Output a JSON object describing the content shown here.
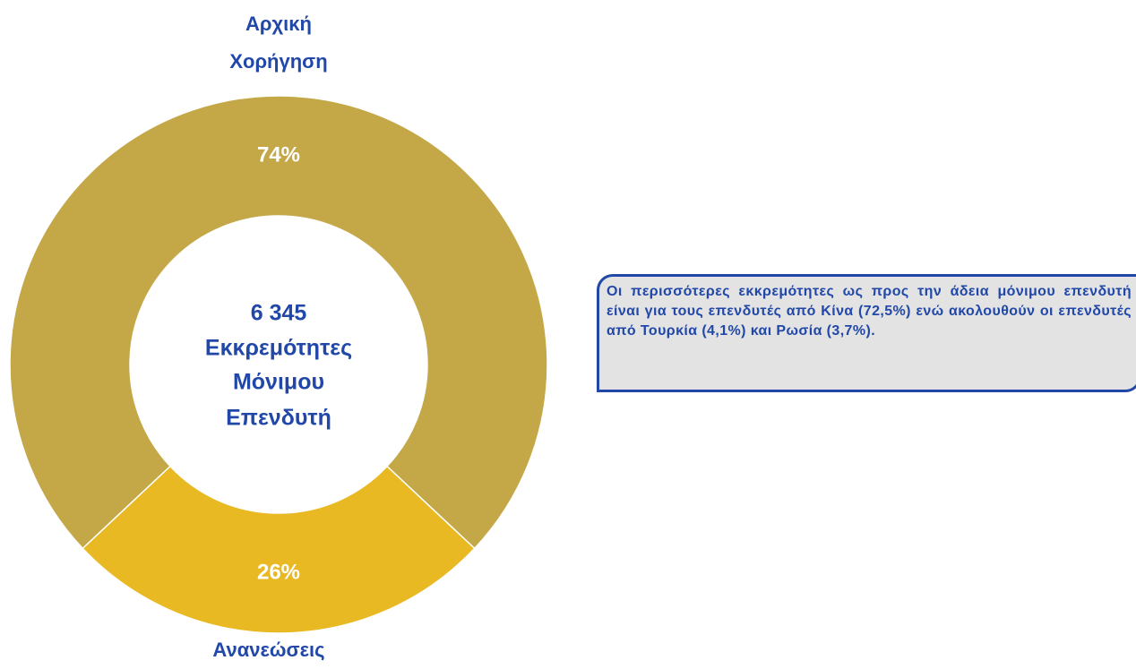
{
  "chart_data": {
    "type": "donut",
    "categories": [
      "Αρχική Χορήγηση",
      "Ανανεώσεις"
    ],
    "values": [
      74,
      26
    ],
    "value_labels": [
      "74%",
      "26%"
    ],
    "colors": [
      "#C4A747",
      "#E8B923"
    ],
    "center_label": [
      "6 345",
      "Εκκρεμότητες",
      "Μόνιμου",
      "Επενδυτή"
    ],
    "annotation": "Οι περισσότερες εκκρεμότητες ως προς την άδεια μόνιμου επενδυτή είναι για τους επενδυτές από Κίνα (72,5%) ενώ ακολουθούν οι επενδυτές από Τουρκία (4,1%) και Ρωσία (3,7%)."
  }
}
